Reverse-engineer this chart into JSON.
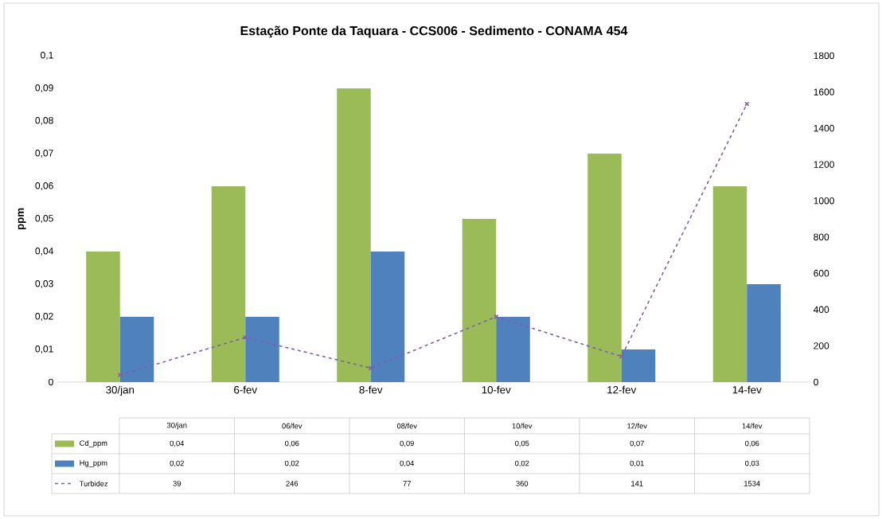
{
  "chart_data": {
    "type": "bar",
    "title": "Estação Ponte da Taquara - CCS006 - Sedimento - CONAMA 454",
    "ylabel": "ppm",
    "categories": [
      "30/jan",
      "6-fev",
      "8-fev",
      "10-fev",
      "12-fev",
      "14-fev"
    ],
    "ylim": [
      0,
      0.1
    ],
    "yticks": [
      0,
      {
        "value": 0.01,
        "label": "0,01"
      },
      {
        "value": 0.02,
        "label": "0,02"
      },
      {
        "value": 0.03,
        "label": "0,03"
      },
      {
        "value": 0.04,
        "label": "0,04"
      },
      {
        "value": 0.05,
        "label": "0,05"
      },
      {
        "value": 0.06,
        "label": "0,06"
      },
      {
        "value": 0.07,
        "label": "0,07"
      },
      {
        "value": 0.08,
        "label": "0,08"
      },
      {
        "value": 0.09,
        "label": "0,09"
      },
      {
        "value": 0.1,
        "label": "0,1"
      }
    ],
    "y2lim": [
      0,
      1800
    ],
    "y2ticks": [
      0,
      200,
      400,
      600,
      800,
      1000,
      1200,
      1400,
      1600,
      1800
    ],
    "legend": "bottom",
    "annotations": [
      "30/jan",
      "06/fev",
      "08/fev",
      "10/fev",
      "12/fev",
      "14/fev"
    ],
    "series": [
      {
        "name": "Cd_ppm",
        "color": "#9bbb59",
        "values": [
          0.04,
          0.06,
          0.09,
          0.05,
          0.07,
          0.06
        ],
        "value_labels": [
          "0,04",
          "0,06",
          "0,09",
          "0,05",
          "0,07",
          "0,06"
        ]
      },
      {
        "name": "Hg_ppm",
        "color": "#4f81bd",
        "values": [
          0.02,
          0.02,
          0.04,
          0.02,
          0.01,
          0.03
        ],
        "value_labels": [
          "0,02",
          "0,02",
          "0,04",
          "0,02",
          "0,01",
          "0,03"
        ]
      },
      {
        "name": "Turbidez",
        "type": "line",
        "axis": "y2",
        "color": "#7f5fa8",
        "marker": "cross",
        "line_style": "dashed",
        "values": [
          39,
          246,
          77,
          360,
          141,
          1534
        ],
        "value_labels": [
          "39",
          "246",
          "77",
          "360",
          "141",
          "1534"
        ]
      }
    ]
  }
}
